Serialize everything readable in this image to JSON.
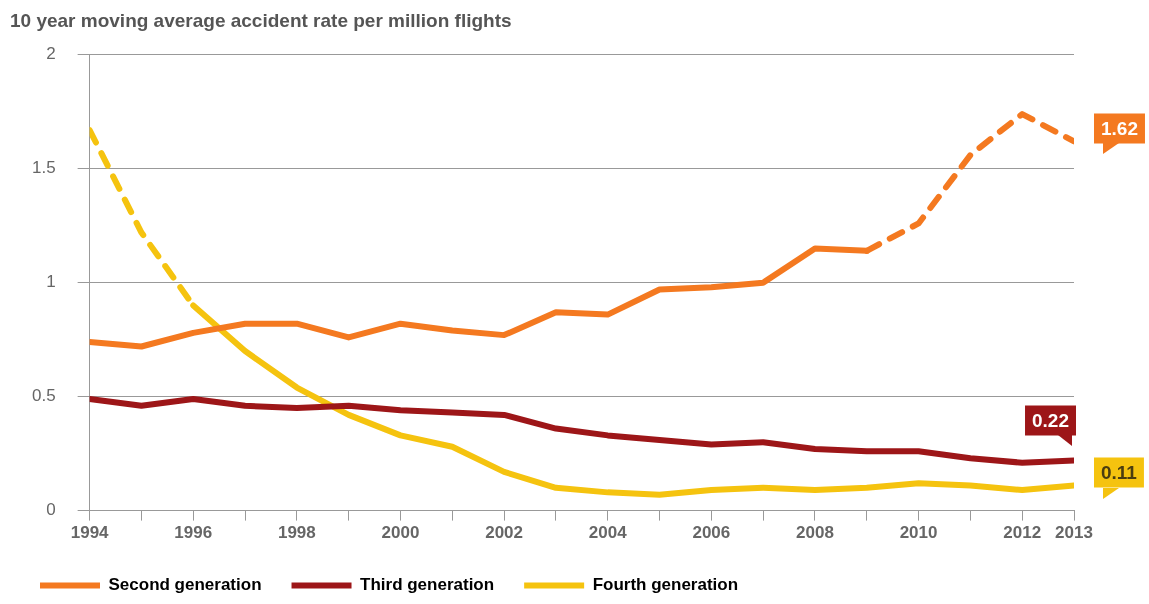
{
  "chart_data": {
    "type": "line",
    "title": "10 year moving average accident rate per million flights",
    "x": [
      1994,
      1995,
      1996,
      1997,
      1998,
      1999,
      2000,
      2001,
      2002,
      2003,
      2004,
      2005,
      2006,
      2007,
      2008,
      2009,
      2010,
      2011,
      2012,
      2013
    ],
    "series": [
      {
        "name": "Second generation",
        "color": "#f47920",
        "line_style": "solid",
        "values": [
          0.74,
          0.72,
          0.78,
          0.82,
          0.82,
          0.76,
          0.82,
          0.79,
          0.77,
          0.87,
          0.86,
          0.97,
          0.98,
          1.0,
          1.15,
          1.14,
          null,
          null,
          null,
          null
        ]
      },
      {
        "color": "#f47920",
        "line_style": "dashed",
        "values": [
          null,
          null,
          null,
          null,
          null,
          null,
          null,
          null,
          null,
          null,
          null,
          null,
          null,
          null,
          null,
          1.14,
          1.26,
          1.56,
          1.74,
          1.62
        ],
        "value_labels": [
          null,
          null,
          null,
          null,
          null,
          null,
          null,
          null,
          null,
          null,
          null,
          null,
          null,
          null,
          null,
          null,
          null,
          null,
          null,
          "1.62"
        ]
      },
      {
        "name": "Third generation",
        "color": "#9d1618",
        "line_style": "solid",
        "values": [
          0.49,
          0.46,
          0.49,
          0.46,
          0.45,
          0.46,
          0.44,
          0.43,
          0.42,
          0.36,
          0.33,
          0.31,
          0.29,
          0.3,
          0.27,
          0.26,
          0.26,
          0.23,
          0.21,
          0.22
        ],
        "value_labels": [
          null,
          null,
          null,
          null,
          null,
          null,
          null,
          null,
          null,
          null,
          null,
          null,
          null,
          null,
          null,
          null,
          null,
          null,
          null,
          "0.22"
        ]
      },
      {
        "color": "#f5c30f",
        "line_style": "dashed",
        "values": [
          1.67,
          1.22,
          0.9,
          null,
          null,
          null,
          null,
          null,
          null,
          null,
          null,
          null,
          null,
          null,
          null,
          null,
          null,
          null,
          null,
          null
        ]
      },
      {
        "name": "Fourth generation",
        "color": "#f5c30f",
        "line_style": "solid",
        "values": [
          null,
          null,
          0.9,
          0.7,
          0.54,
          0.42,
          0.33,
          0.28,
          0.17,
          0.1,
          0.08,
          0.07,
          0.09,
          0.1,
          0.09,
          0.1,
          0.12,
          0.11,
          0.09,
          0.11
        ],
        "value_labels": [
          null,
          null,
          null,
          null,
          null,
          null,
          null,
          null,
          null,
          null,
          null,
          null,
          null,
          null,
          null,
          null,
          null,
          null,
          null,
          "0.11"
        ]
      }
    ],
    "xlim": [
      1994,
      2013
    ],
    "xticks": [
      1994,
      {
        "value": 1995,
        "label": null
      },
      1996,
      {
        "value": 1997,
        "label": null
      },
      1998,
      {
        "value": 1999,
        "label": null
      },
      2000,
      {
        "value": 2001,
        "label": null
      },
      2002,
      {
        "value": 2003,
        "label": null
      },
      2004,
      {
        "value": 2005,
        "label": null
      },
      2006,
      {
        "value": 2007,
        "label": null
      },
      2008,
      {
        "value": 2009,
        "label": null
      },
      2010,
      {
        "value": 2011,
        "label": null
      },
      2012,
      2013
    ],
    "ylim": [
      0,
      2
    ],
    "yticks": [
      0,
      0.5,
      1,
      1.5,
      2
    ],
    "grid": "y",
    "legend": "bottom",
    "marker": "none"
  }
}
